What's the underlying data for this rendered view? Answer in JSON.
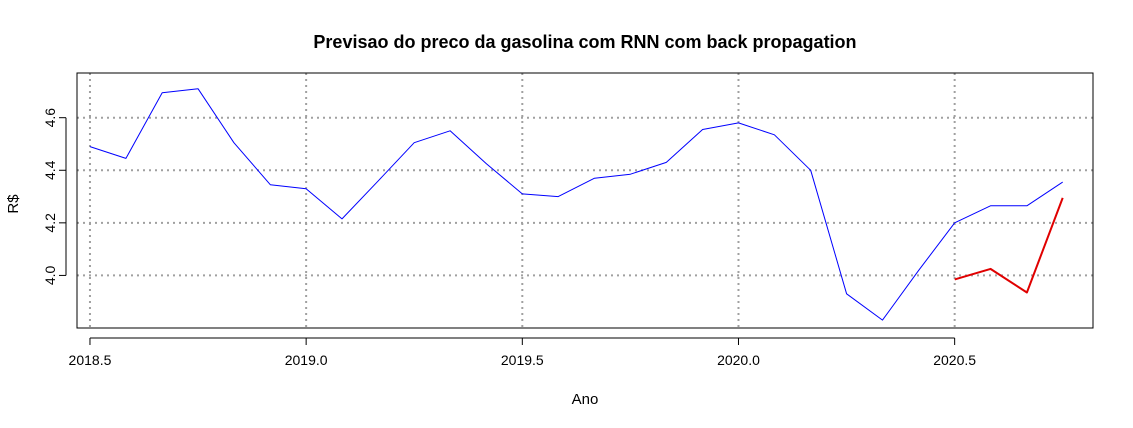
{
  "chart_data": {
    "type": "line",
    "title": "Previsao do preco da gasolina com RNN com back propagation",
    "xlabel": "Ano",
    "ylabel": "R$",
    "xlim": [
      2018.47,
      2020.82
    ],
    "ylim": [
      3.8,
      4.77
    ],
    "x_ticks": [
      2018.5,
      2019.0,
      2019.5,
      2020.0,
      2020.5
    ],
    "x_tick_labels": [
      "2018.5",
      "2019.0",
      "2019.5",
      "2020.0",
      "2020.5"
    ],
    "y_ticks": [
      4.0,
      4.2,
      4.4,
      4.6
    ],
    "y_tick_labels": [
      "4.0",
      "4.2",
      "4.4",
      "4.6"
    ],
    "grid": true,
    "series": [
      {
        "color": "#0000ff",
        "x": [
          2018.5,
          2018.583,
          2018.667,
          2018.75,
          2018.833,
          2018.917,
          2019.0,
          2019.083,
          2019.167,
          2019.25,
          2019.333,
          2019.417,
          2019.5,
          2019.583,
          2019.667,
          2019.75,
          2019.833,
          2019.917,
          2020.0,
          2020.083,
          2020.167,
          2020.25,
          2020.333,
          2020.417,
          2020.5,
          2020.583,
          2020.667,
          2020.75
        ],
        "values": [
          4.49,
          4.445,
          4.695,
          4.71,
          4.505,
          4.345,
          4.33,
          4.215,
          4.36,
          4.505,
          4.55,
          4.425,
          4.31,
          4.3,
          4.37,
          4.385,
          4.43,
          4.555,
          4.58,
          4.535,
          4.4,
          3.93,
          3.83,
          4.02,
          4.2,
          4.265,
          4.265,
          4.355
        ]
      },
      {
        "color": "#e00000",
        "x": [
          2020.5,
          2020.583,
          2020.667,
          2020.75
        ],
        "values": [
          3.985,
          4.025,
          3.935,
          4.295
        ]
      }
    ]
  }
}
